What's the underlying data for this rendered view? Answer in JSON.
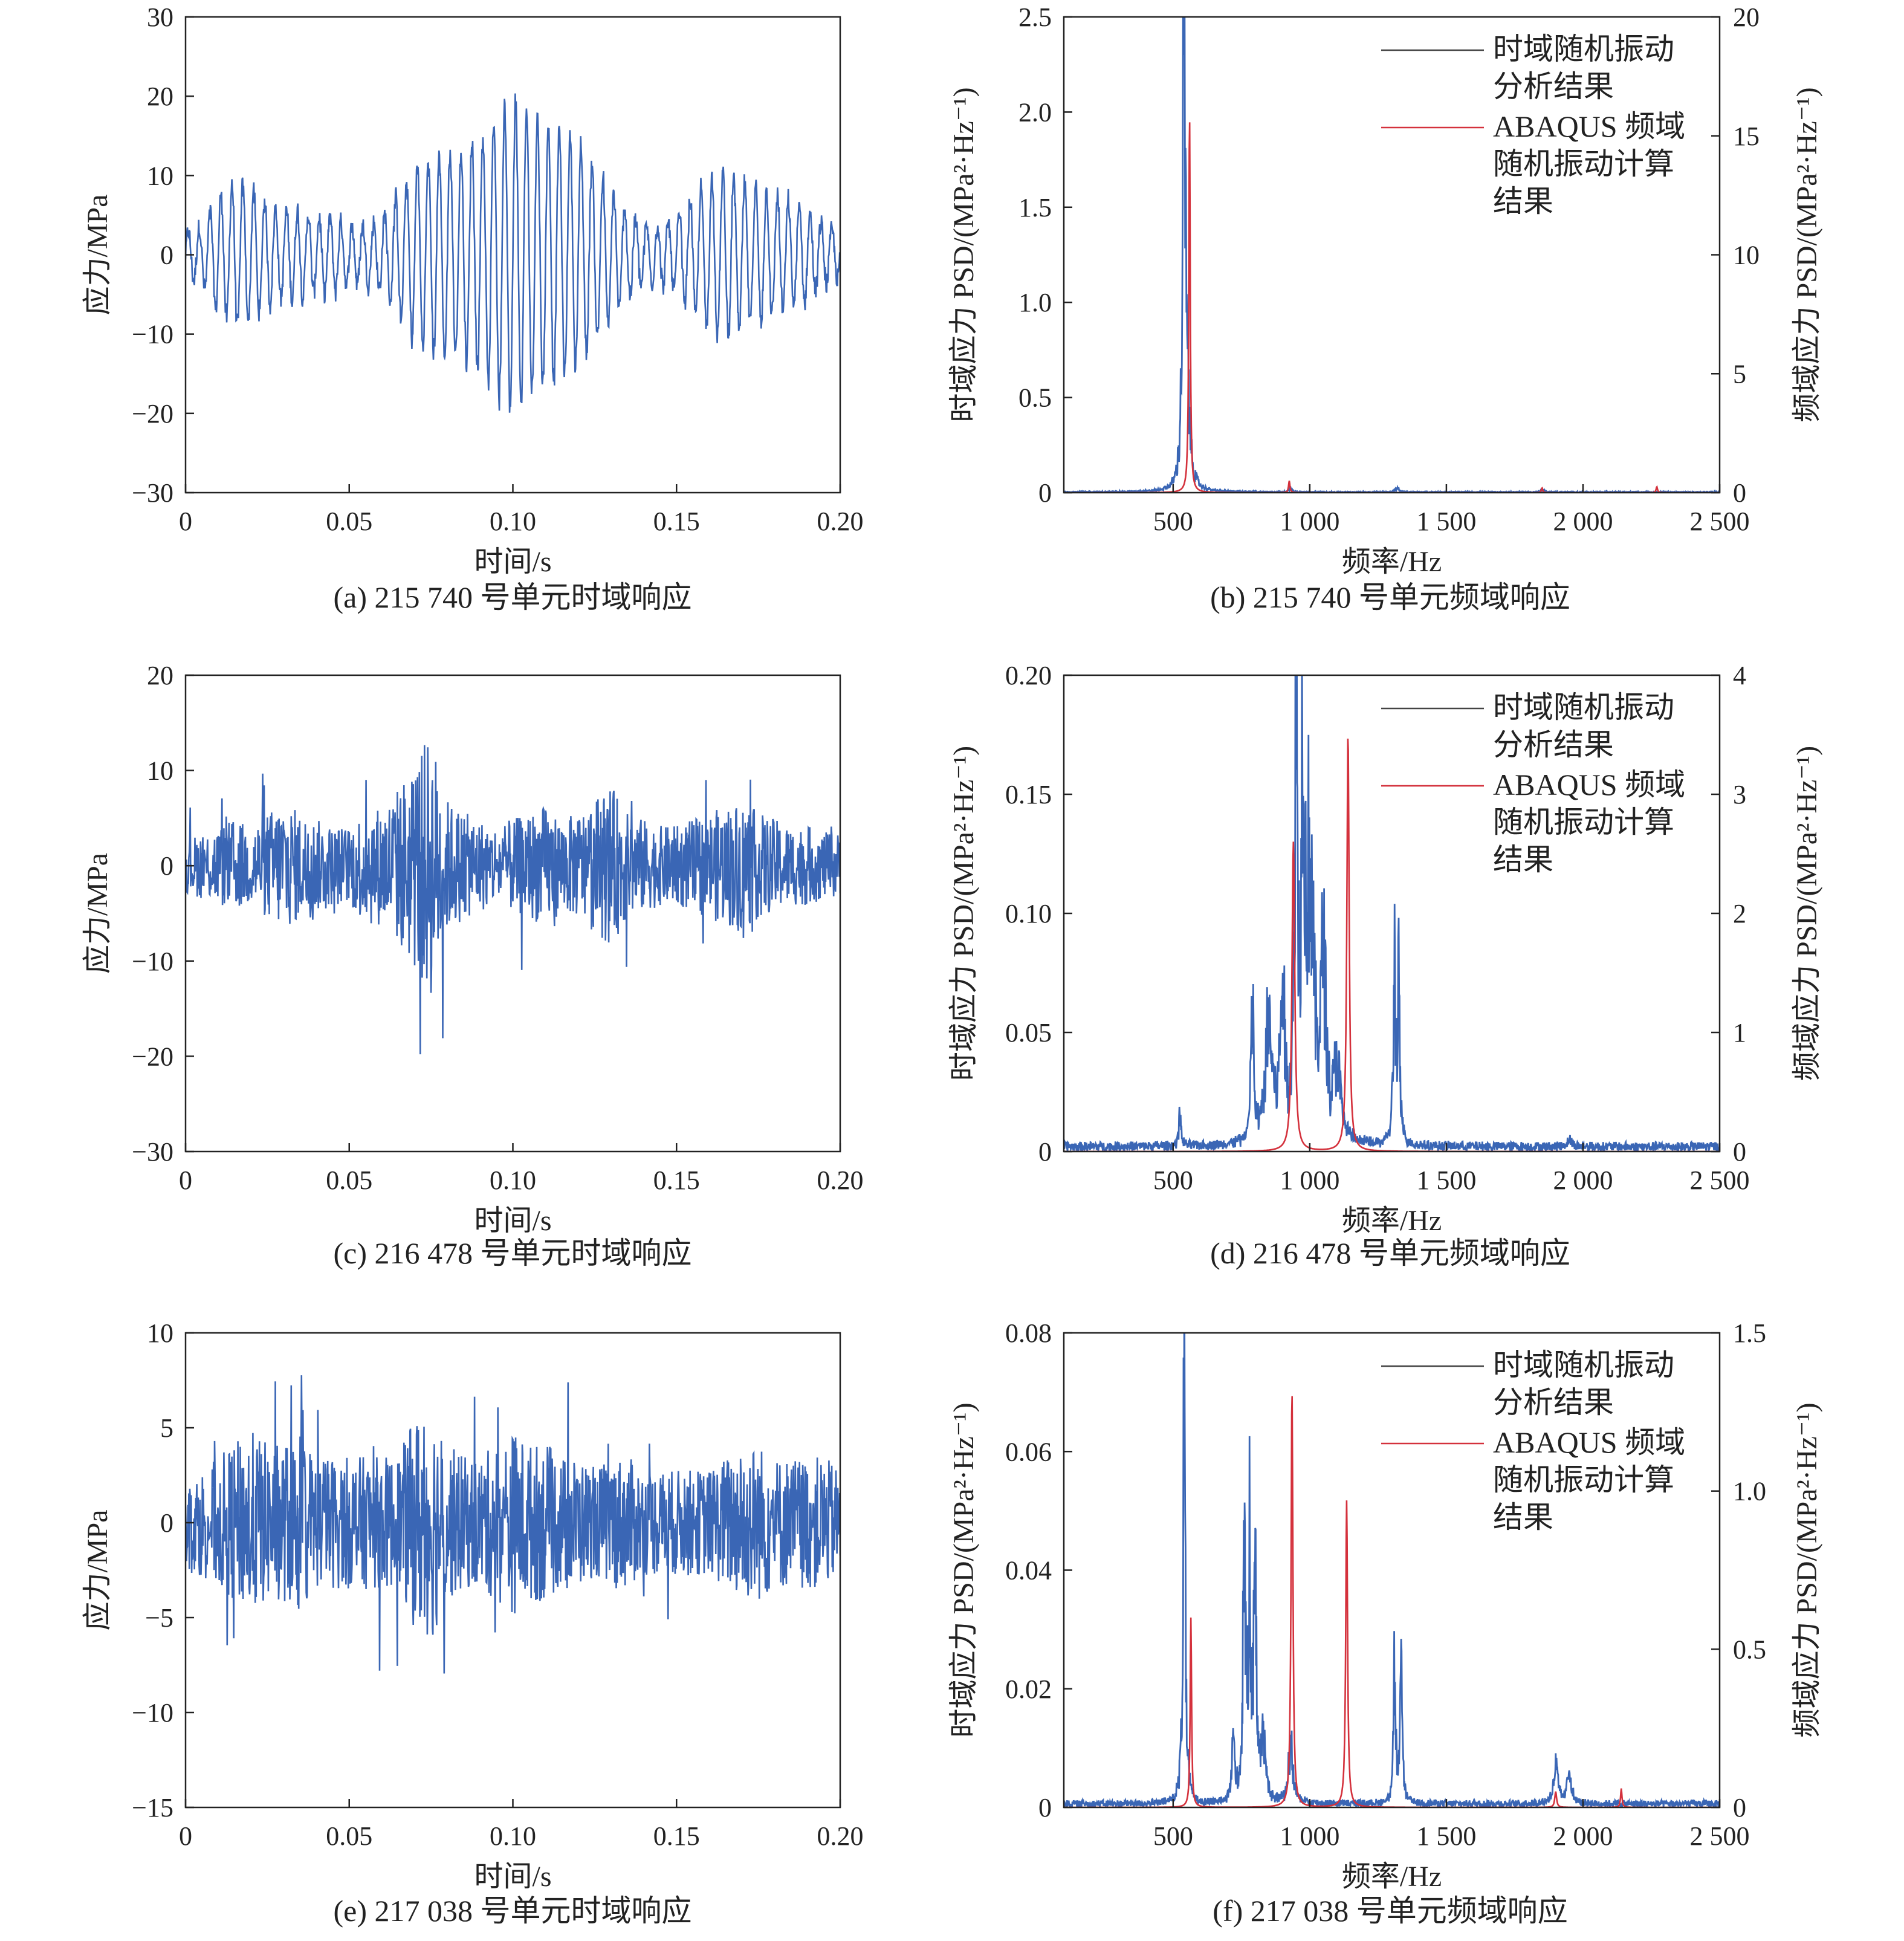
{
  "colors": {
    "time_series": "#3a66b5",
    "abaqus": "#d4313c",
    "frame": "#222222"
  },
  "chart_data": [
    {
      "id": "a",
      "type": "line",
      "caption": "(a) 215 740 号单元时域响应",
      "xlabel": "时间/s",
      "ylabel": "应力/MPa",
      "xlim": [
        0,
        0.2
      ],
      "ylim": [
        -30,
        30
      ],
      "xticks": [
        0,
        0.05,
        0.1,
        0.15,
        0.2
      ],
      "xtick_labels": [
        "0",
        "0.05",
        "0.10",
        "0.15",
        "0.20"
      ],
      "yticks": [
        -30,
        -20,
        -10,
        0,
        10,
        20,
        30
      ],
      "ytick_labels": [
        "−30",
        "−20",
        "−10",
        "0",
        "10",
        "20",
        "30"
      ],
      "series": [
        {
          "x": [
            0,
            0.005,
            0.01,
            0.015,
            0.02,
            0.025,
            0.03,
            0.035,
            0.04,
            0.045,
            0.05,
            0.055,
            0.06,
            0.065,
            0.07,
            0.075,
            0.08,
            0.085,
            0.09,
            0.095,
            0.1,
            0.105,
            0.11,
            0.115,
            0.12,
            0.125,
            0.13,
            0.135,
            0.14,
            0.145,
            0.15,
            0.155,
            0.16,
            0.165,
            0.17,
            0.175,
            0.18,
            0.185,
            0.19,
            0.195,
            0.2
          ],
          "envelope": [
            3,
            4,
            8,
            10,
            9,
            7,
            6,
            6,
            5,
            5,
            4,
            4,
            5,
            8,
            12,
            13,
            14,
            14,
            16,
            19,
            21,
            19,
            18,
            17,
            15,
            12,
            9,
            6,
            4,
            4,
            5,
            8,
            10,
            11,
            10,
            9,
            8,
            7,
            6,
            4,
            3
          ],
          "freq_hz": 300,
          "style": "oscillation"
        }
      ]
    },
    {
      "id": "b",
      "type": "line",
      "caption": "(b) 215 740 号单元频域响应",
      "xlabel": "频率/Hz",
      "ylabel": "时域应力 PSD/(MPa²·Hz⁻¹)",
      "y2label": "频域应力 PSD/(MPa²·Hz⁻¹)",
      "xlim": [
        100,
        2500
      ],
      "ylim": [
        0,
        2.5
      ],
      "y2lim": [
        0,
        20
      ],
      "xticks": [
        500,
        1000,
        1500,
        2000,
        2500
      ],
      "xtick_labels": [
        "500",
        "1 000",
        "1 500",
        "2 000",
        "2 500"
      ],
      "yticks": [
        0,
        0.5,
        1.0,
        1.5,
        2.0,
        2.5
      ],
      "ytick_labels": [
        "0",
        "0.5",
        "1.0",
        "1.5",
        "2.0",
        "2.5"
      ],
      "y2ticks": [
        0,
        5,
        10,
        15,
        20
      ],
      "y2tick_labels": [
        "0",
        "5",
        "10",
        "15",
        "20"
      ],
      "legend": [
        "时域随机振动\n分析结果",
        "ABAQUS 频域\n随机振动计算\n结果"
      ],
      "legend_position": "top-right",
      "series": [
        {
          "style": "psd",
          "axis": "left",
          "noise": 0.006,
          "peaks": [
            [
              540,
              2.38,
              6
            ],
            [
              555,
              0.3,
              10
            ],
            [
              930,
              0.02,
              6
            ],
            [
              1320,
              0.02,
              8
            ],
            [
              1850,
              0.01,
              8
            ]
          ]
        },
        {
          "style": "resonance",
          "axis": "right",
          "peaks": [
            [
              560,
              16.0,
              3
            ],
            [
              925,
              0.5,
              3
            ],
            [
              1850,
              0.2,
              3
            ],
            [
              2270,
              0.25,
              3
            ]
          ]
        }
      ]
    },
    {
      "id": "c",
      "type": "line",
      "caption": "(c) 216 478 号单元时域响应",
      "xlabel": "时间/s",
      "ylabel": "应力/MPa",
      "xlim": [
        0,
        0.2
      ],
      "ylim": [
        -30,
        20
      ],
      "xticks": [
        0,
        0.05,
        0.1,
        0.15,
        0.2
      ],
      "xtick_labels": [
        "0",
        "0.05",
        "0.10",
        "0.15",
        "0.20"
      ],
      "yticks": [
        -30,
        -20,
        -10,
        0,
        10,
        20
      ],
      "ytick_labels": [
        "−30",
        "−20",
        "−10",
        "0",
        "10",
        "20"
      ],
      "series": [
        {
          "x": [
            0,
            0.005,
            0.01,
            0.015,
            0.02,
            0.025,
            0.03,
            0.035,
            0.04,
            0.045,
            0.05,
            0.055,
            0.06,
            0.065,
            0.07,
            0.075,
            0.08,
            0.085,
            0.09,
            0.095,
            0.1,
            0.105,
            0.11,
            0.115,
            0.12,
            0.125,
            0.13,
            0.135,
            0.14,
            0.145,
            0.15,
            0.155,
            0.16,
            0.165,
            0.17,
            0.175,
            0.18,
            0.185,
            0.19,
            0.195,
            0.2
          ],
          "envelope": [
            4,
            5,
            6,
            7,
            6,
            8,
            10,
            8,
            7,
            6,
            6,
            9,
            9,
            12,
            16,
            20,
            10,
            8,
            7,
            6,
            7,
            8,
            9,
            7,
            8,
            10,
            12,
            8,
            7,
            6,
            6,
            7,
            8,
            9,
            10,
            8,
            7,
            6,
            6,
            5,
            5
          ],
          "style": "noise"
        }
      ]
    },
    {
      "id": "d",
      "type": "line",
      "caption": "(d) 216 478 号单元频域响应",
      "xlabel": "频率/Hz",
      "ylabel": "时域应力 PSD/(MPa²·Hz⁻¹)",
      "y2label": "频域应力 PSD/(MPa²·Hz⁻¹)",
      "xlim": [
        100,
        2500
      ],
      "ylim": [
        0,
        0.2
      ],
      "y2lim": [
        0,
        4
      ],
      "xticks": [
        500,
        1000,
        1500,
        2000,
        2500
      ],
      "xtick_labels": [
        "500",
        "1 000",
        "1 500",
        "2 000",
        "2 500"
      ],
      "yticks": [
        0,
        0.05,
        0.1,
        0.15,
        0.2
      ],
      "ytick_labels": [
        "0",
        "0.05",
        "0.10",
        "0.15",
        "0.20"
      ],
      "y2ticks": [
        0,
        1,
        2,
        3,
        4
      ],
      "y2tick_labels": [
        "0",
        "1",
        "2",
        "3",
        "4"
      ],
      "legend": [
        "时域随机振动\n分析结果",
        "ABAQUS 频域\n随机振动计算\n结果"
      ],
      "legend_position": "top-right",
      "series": [
        {
          "style": "psd",
          "axis": "left",
          "noise": 0.004,
          "peaks": [
            [
              525,
              0.018,
              4
            ],
            [
              790,
              0.055,
              6
            ],
            [
              850,
              0.05,
              14
            ],
            [
              900,
              0.06,
              10
            ],
            [
              950,
              0.183,
              6
            ],
            [
              975,
              0.162,
              6
            ],
            [
              1000,
              0.11,
              16
            ],
            [
              1050,
              0.07,
              12
            ],
            [
              1100,
              0.03,
              14
            ],
            [
              1310,
              0.072,
              5
            ],
            [
              1325,
              0.06,
              5
            ],
            [
              1950,
              0.003,
              10
            ]
          ]
        },
        {
          "style": "resonance",
          "axis": "right",
          "peaks": [
            [
              940,
              2.6,
              6
            ],
            [
              1140,
              3.5,
              5
            ]
          ]
        }
      ]
    },
    {
      "id": "e",
      "type": "line",
      "caption": "(e) 217 038 号单元时域响应",
      "xlabel": "时间/s",
      "ylabel": "应力/MPa",
      "xlim": [
        0,
        0.2
      ],
      "ylim": [
        -15,
        10
      ],
      "xticks": [
        0,
        0.05,
        0.1,
        0.15,
        0.2
      ],
      "xtick_labels": [
        "0",
        "0.05",
        "0.10",
        "0.15",
        "0.20"
      ],
      "yticks": [
        -15,
        -10,
        -5,
        0,
        5,
        10
      ],
      "ytick_labels": [
        "−15",
        "−10",
        "−5",
        "0",
        "5",
        "10"
      ],
      "series": [
        {
          "x": [
            0,
            0.005,
            0.01,
            0.015,
            0.02,
            0.025,
            0.03,
            0.035,
            0.04,
            0.045,
            0.05,
            0.055,
            0.06,
            0.065,
            0.07,
            0.075,
            0.08,
            0.085,
            0.09,
            0.095,
            0.1,
            0.105,
            0.11,
            0.115,
            0.12,
            0.125,
            0.13,
            0.135,
            0.14,
            0.145,
            0.15,
            0.155,
            0.16,
            0.165,
            0.17,
            0.175,
            0.18,
            0.185,
            0.19,
            0.195,
            0.2
          ],
          "envelope": [
            3,
            4,
            5,
            6,
            7,
            6,
            6,
            7,
            5,
            5,
            5,
            5,
            5,
            5,
            8,
            9,
            6,
            5,
            5,
            6,
            7,
            6,
            6,
            5,
            5,
            4,
            5,
            5,
            4,
            4,
            4,
            4,
            4,
            5,
            6,
            6,
            5,
            5,
            5,
            5,
            4
          ],
          "style": "noise"
        }
      ]
    },
    {
      "id": "f",
      "type": "line",
      "caption": "(f) 217 038 号单元频域响应",
      "xlabel": "频率/Hz",
      "ylabel": "时域应力 PSD/(MPa²·Hz⁻¹)",
      "y2label": "频域应力 PSD/(MPa²·Hz⁻¹)",
      "xlim": [
        100,
        2500
      ],
      "ylim": [
        0,
        0.08
      ],
      "y2lim": [
        0,
        1.5
      ],
      "xticks": [
        500,
        1000,
        1500,
        2000,
        2500
      ],
      "xtick_labels": [
        "500",
        "1 000",
        "1 500",
        "2 000",
        "2 500"
      ],
      "yticks": [
        0,
        0.02,
        0.04,
        0.06,
        0.08
      ],
      "ytick_labels": [
        "0",
        "0.02",
        "0.04",
        "0.06",
        "0.08"
      ],
      "y2ticks": [
        0,
        0.5,
        1.0,
        1.5
      ],
      "y2tick_labels": [
        "0",
        "0.5",
        "1.0",
        "1.5"
      ],
      "legend": [
        "时域随机振动\n分析结果",
        "ABAQUS 频域\n随机振动计算\n结果"
      ],
      "legend_position": "top-right",
      "series": [
        {
          "style": "psd",
          "axis": "left",
          "noise": 0.0012,
          "peaks": [
            [
              540,
              0.066,
              5
            ],
            [
              720,
              0.01,
              6
            ],
            [
              760,
              0.047,
              5
            ],
            [
              780,
              0.042,
              5
            ],
            [
              800,
              0.045,
              5
            ],
            [
              830,
              0.012,
              8
            ],
            [
              930,
              0.01,
              10
            ],
            [
              1310,
              0.022,
              5
            ],
            [
              1335,
              0.02,
              5
            ],
            [
              1900,
              0.006,
              10
            ],
            [
              1950,
              0.006,
              8
            ]
          ]
        },
        {
          "style": "resonance",
          "axis": "right",
          "peaks": [
            [
              565,
              0.6,
              3
            ],
            [
              935,
              1.32,
              4
            ],
            [
              1135,
              0.97,
              4
            ],
            [
              1900,
              0.05,
              4
            ],
            [
              2140,
              0.06,
              3
            ]
          ]
        }
      ]
    }
  ]
}
